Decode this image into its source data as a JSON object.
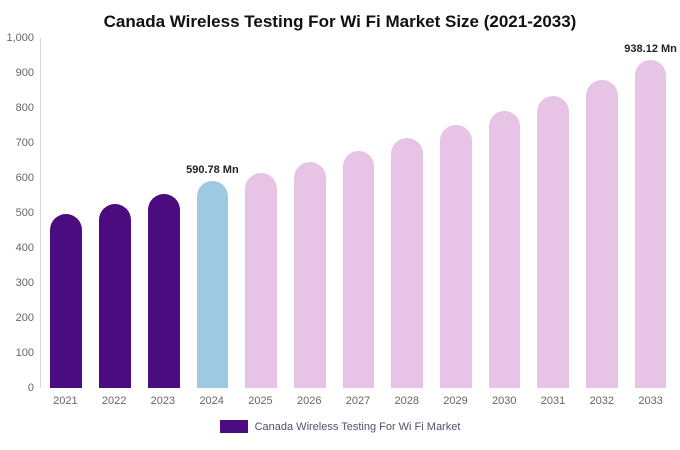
{
  "chart_data": {
    "type": "bar",
    "title": "Canada Wireless Testing For Wi Fi Market Size (2021-2033)",
    "unit": "Mn",
    "categories": [
      "2021",
      "2022",
      "2023",
      "2024",
      "2025",
      "2026",
      "2027",
      "2028",
      "2029",
      "2030",
      "2031",
      "2032",
      "2033"
    ],
    "values": [
      497,
      525,
      553,
      590.78,
      613,
      646,
      678,
      714,
      752,
      792,
      835,
      880,
      938.12
    ],
    "colors": [
      "#4a0c7e",
      "#4a0c7e",
      "#4a0c7e",
      "#9ec9e2",
      "#e7c3e6",
      "#e7c3e6",
      "#e7c3e6",
      "#e7c3e6",
      "#e7c3e6",
      "#e7c3e6",
      "#e7c3e6",
      "#e7c3e6",
      "#e7c3e6"
    ],
    "ylim": [
      0,
      1000
    ],
    "yticks": [
      "1,000",
      "900",
      "800",
      "700",
      "600",
      "500",
      "400",
      "300",
      "200",
      "100",
      "0"
    ],
    "grid": "off",
    "legend_position": "bottom",
    "annotations": [
      {
        "category": "2024",
        "text": "590.78 Mn"
      },
      {
        "category": "2033",
        "text": "938.12 Mn"
      }
    ],
    "legend": [
      {
        "label": "Canada Wireless Testing For Wi Fi Market",
        "color": "#4a0c7e"
      }
    ],
    "legend_text_color": "#52506e",
    "axis_text_color": "#666666"
  }
}
